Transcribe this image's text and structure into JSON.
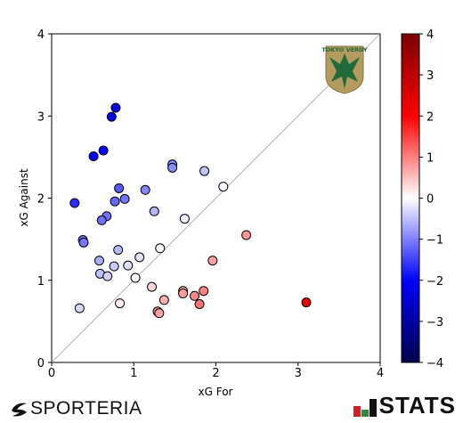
{
  "chart_data": {
    "type": "scatter",
    "xlabel": "xG For",
    "ylabel": "xG Against",
    "xlim": [
      0,
      4
    ],
    "ylim": [
      0,
      4
    ],
    "x_ticks": [
      "0",
      "1",
      "2",
      "3",
      "4"
    ],
    "y_ticks": [
      "0",
      "1",
      "2",
      "3",
      "4"
    ],
    "diagonal_reference_line": true,
    "grid": false,
    "color_value": "xG For minus xG Against",
    "colorbar": {
      "range": [
        -4,
        4
      ],
      "ticks": [
        "4",
        "3",
        "2",
        "1",
        "0",
        "−1",
        "−2",
        "−3",
        "−4"
      ],
      "colormap": [
        "#00004a",
        "#0000ff",
        "#ffffff",
        "#ff0000",
        "#7a0000"
      ]
    },
    "points": [
      {
        "x": 0.78,
        "y": 3.1
      },
      {
        "x": 0.73,
        "y": 2.99
      },
      {
        "x": 0.63,
        "y": 2.58
      },
      {
        "x": 0.51,
        "y": 2.51
      },
      {
        "x": 1.47,
        "y": 2.41
      },
      {
        "x": 1.47,
        "y": 2.37
      },
      {
        "x": 1.86,
        "y": 2.33
      },
      {
        "x": 0.82,
        "y": 2.12
      },
      {
        "x": 1.14,
        "y": 2.1
      },
      {
        "x": 2.09,
        "y": 2.14
      },
      {
        "x": 0.89,
        "y": 1.99
      },
      {
        "x": 0.77,
        "y": 1.96
      },
      {
        "x": 0.28,
        "y": 1.94
      },
      {
        "x": 1.25,
        "y": 1.84
      },
      {
        "x": 0.67,
        "y": 1.78
      },
      {
        "x": 0.61,
        "y": 1.73
      },
      {
        "x": 1.62,
        "y": 1.75
      },
      {
        "x": 0.38,
        "y": 1.49
      },
      {
        "x": 0.39,
        "y": 1.46
      },
      {
        "x": 0.81,
        "y": 1.37
      },
      {
        "x": 1.32,
        "y": 1.39
      },
      {
        "x": 2.37,
        "y": 1.55
      },
      {
        "x": 1.07,
        "y": 1.28
      },
      {
        "x": 0.58,
        "y": 1.24
      },
      {
        "x": 0.76,
        "y": 1.17
      },
      {
        "x": 0.93,
        "y": 1.18
      },
      {
        "x": 1.96,
        "y": 1.24
      },
      {
        "x": 0.59,
        "y": 1.08
      },
      {
        "x": 0.68,
        "y": 1.05
      },
      {
        "x": 1.02,
        "y": 1.03
      },
      {
        "x": 1.22,
        "y": 0.92
      },
      {
        "x": 1.6,
        "y": 0.87
      },
      {
        "x": 1.6,
        "y": 0.84
      },
      {
        "x": 1.85,
        "y": 0.87
      },
      {
        "x": 1.74,
        "y": 0.81
      },
      {
        "x": 1.37,
        "y": 0.76
      },
      {
        "x": 0.83,
        "y": 0.72
      },
      {
        "x": 1.8,
        "y": 0.71
      },
      {
        "x": 3.1,
        "y": 0.73
      },
      {
        "x": 0.34,
        "y": 0.66
      },
      {
        "x": 1.29,
        "y": 0.62
      },
      {
        "x": 1.31,
        "y": 0.6
      }
    ]
  },
  "team_crest": {
    "text": "TOKYO VERDY",
    "colors": {
      "primary": "#1f6b3a",
      "secondary": "#b39a5e"
    }
  },
  "footer": {
    "left_logo_text": "SPORTERIA",
    "left_logo_icon": "sporteria-swoosh-icon",
    "right_logo_text": "STATS",
    "right_logo_icon": "stats-bars-icon"
  }
}
